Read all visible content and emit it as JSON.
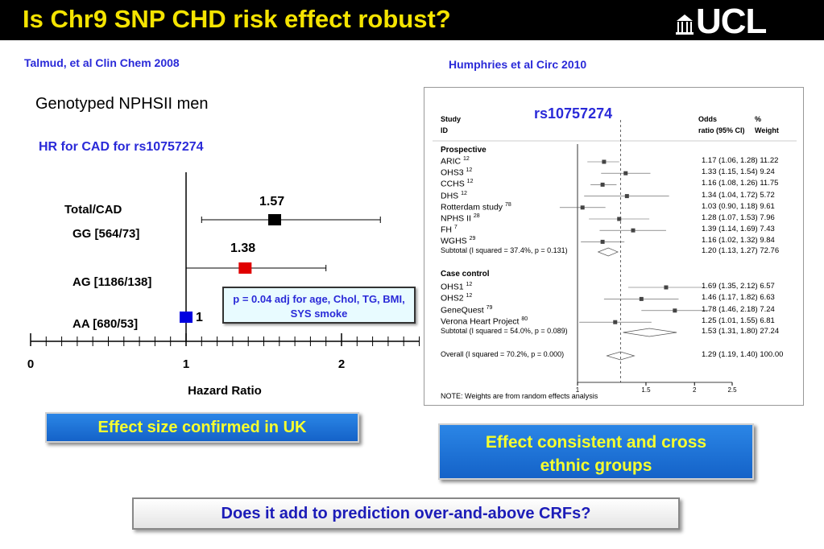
{
  "slide": {
    "title": "Is Chr9 SNP CHD risk effect robust?",
    "logo_text": "UCL",
    "left_citation": "Talmud, et al Clin Chem 2008",
    "right_citation": "Humphries et al Circ 2010",
    "genotyped": "Genotyped NPHSII men",
    "hr_label": "HR for CAD for rs10757274"
  },
  "left_plot": {
    "total_label": "Total/CAD",
    "rows": [
      {
        "label": "GG [564/73]",
        "hr": 1.57,
        "ci": [
          1.1,
          2.25
        ],
        "hr_label": "1.57",
        "color": "#000000"
      },
      {
        "label": "AG [1186/138]",
        "hr": 1.38,
        "ci": [
          1.0,
          1.9
        ],
        "hr_label": "1.38",
        "color": "#e00000"
      },
      {
        "label": "AA [680/53]",
        "hr": 1.0,
        "hr_label": "1",
        "color": "#0000e0"
      }
    ],
    "x_ticks": [
      "0",
      "1",
      "2"
    ],
    "x_range": [
      0,
      2.5
    ],
    "x_axis_label": "Hazard Ratio",
    "adj_note": "p = 0.04  adj for age, Chol, TG, BMI, SYS smoke"
  },
  "forest_plot": {
    "snp": "rs10757274",
    "header": {
      "study": "Study",
      "id": "ID",
      "odds": "Odds",
      "ratio": "ratio (95% CI)",
      "pct": "%",
      "weight": "Weight"
    },
    "prospective_label": "Prospective",
    "case_control_label": "Case  control",
    "prospective": [
      {
        "name": "ARIC",
        "ref": "12",
        "or": 1.17,
        "lo": 1.06,
        "hi": 1.28,
        "ci": "1.17 (1.06, 1.28)",
        "weight": "11.22"
      },
      {
        "name": "OHS3",
        "ref": "12",
        "or": 1.33,
        "lo": 1.15,
        "hi": 1.54,
        "ci": "1.33 (1.15, 1.54)",
        "weight": "9.24"
      },
      {
        "name": "CCHS",
        "ref": "12",
        "or": 1.16,
        "lo": 1.08,
        "hi": 1.26,
        "ci": "1.16 (1.08, 1.26)",
        "weight": "11.75"
      },
      {
        "name": "DHS",
        "ref": "12",
        "or": 1.34,
        "lo": 1.04,
        "hi": 1.72,
        "ci": "1.34 (1.04, 1.72)",
        "weight": "5.72"
      },
      {
        "name": "Rotterdam study",
        "ref": "78",
        "or": 1.03,
        "lo": 0.9,
        "hi": 1.18,
        "ci": "1.03 (0.90, 1.18)",
        "weight": "9.61"
      },
      {
        "name": "NPHS II",
        "ref": "28",
        "or": 1.28,
        "lo": 1.07,
        "hi": 1.53,
        "ci": "1.28 (1.07, 1.53)",
        "weight": "7.96"
      },
      {
        "name": "FH",
        "ref": "7",
        "or": 1.39,
        "lo": 1.14,
        "hi": 1.69,
        "ci": "1.39 (1.14, 1.69)",
        "weight": "7.43"
      },
      {
        "name": "WGHS",
        "ref": "29",
        "or": 1.16,
        "lo": 1.02,
        "hi": 1.32,
        "ci": "1.16 (1.02, 1.32)",
        "weight": "9.84"
      }
    ],
    "subtotal_prospective": {
      "label": "Subtotal  (I squared = 37.4%, p = 0.131)",
      "or": 1.2,
      "lo": 1.13,
      "hi": 1.27,
      "ci": "1.20 (1.13, 1.27)",
      "weight": "72.76"
    },
    "case_control": [
      {
        "name": "OHS1",
        "ref": "12",
        "or": 1.69,
        "lo": 1.35,
        "hi": 2.12,
        "ci": "1.69 (1.35, 2.12)",
        "weight": "6.57"
      },
      {
        "name": "OHS2",
        "ref": "12",
        "or": 1.46,
        "lo": 1.17,
        "hi": 1.82,
        "ci": "1.46 (1.17, 1.82)",
        "weight": "6.63"
      },
      {
        "name": "GeneQuest",
        "ref": "79",
        "or": 1.78,
        "lo": 1.46,
        "hi": 2.18,
        "ci": "1.78 (1.46, 2.18)",
        "weight": "7.24"
      },
      {
        "name": "Verona Heart Project",
        "ref": "80",
        "or": 1.25,
        "lo": 1.01,
        "hi": 1.55,
        "ci": "1.25 (1.01, 1.55)",
        "weight": "6.81"
      }
    ],
    "subtotal_case_control": {
      "label": "Subtotal  (I squared = 54.0%, p = 0.089)",
      "or": 1.53,
      "lo": 1.31,
      "hi": 1.8,
      "ci": "1.53 (1.31, 1.80)",
      "weight": "27.24"
    },
    "overall": {
      "label": "Overall  (I squared = 70.2%, p = 0.000)",
      "or": 1.29,
      "lo": 1.19,
      "hi": 1.4,
      "ci": "1.29 (1.19, 1.40)",
      "weight": "100.00"
    },
    "x_ticks": [
      "1",
      "1.5",
      "2",
      "2.5"
    ],
    "note": "NOTE: Weights are from random effects analysis"
  },
  "callouts": {
    "uk": "Effect size confirmed in UK",
    "ethnic_line1": "Effect  consistent and cross",
    "ethnic_line2": "ethnic groups",
    "question": "Does it add to prediction over-and-above CRFs?"
  },
  "colors": {
    "title": "#f5e400",
    "accent_blue": "#2a2ad8",
    "callout_text": "#f7ff2e"
  }
}
